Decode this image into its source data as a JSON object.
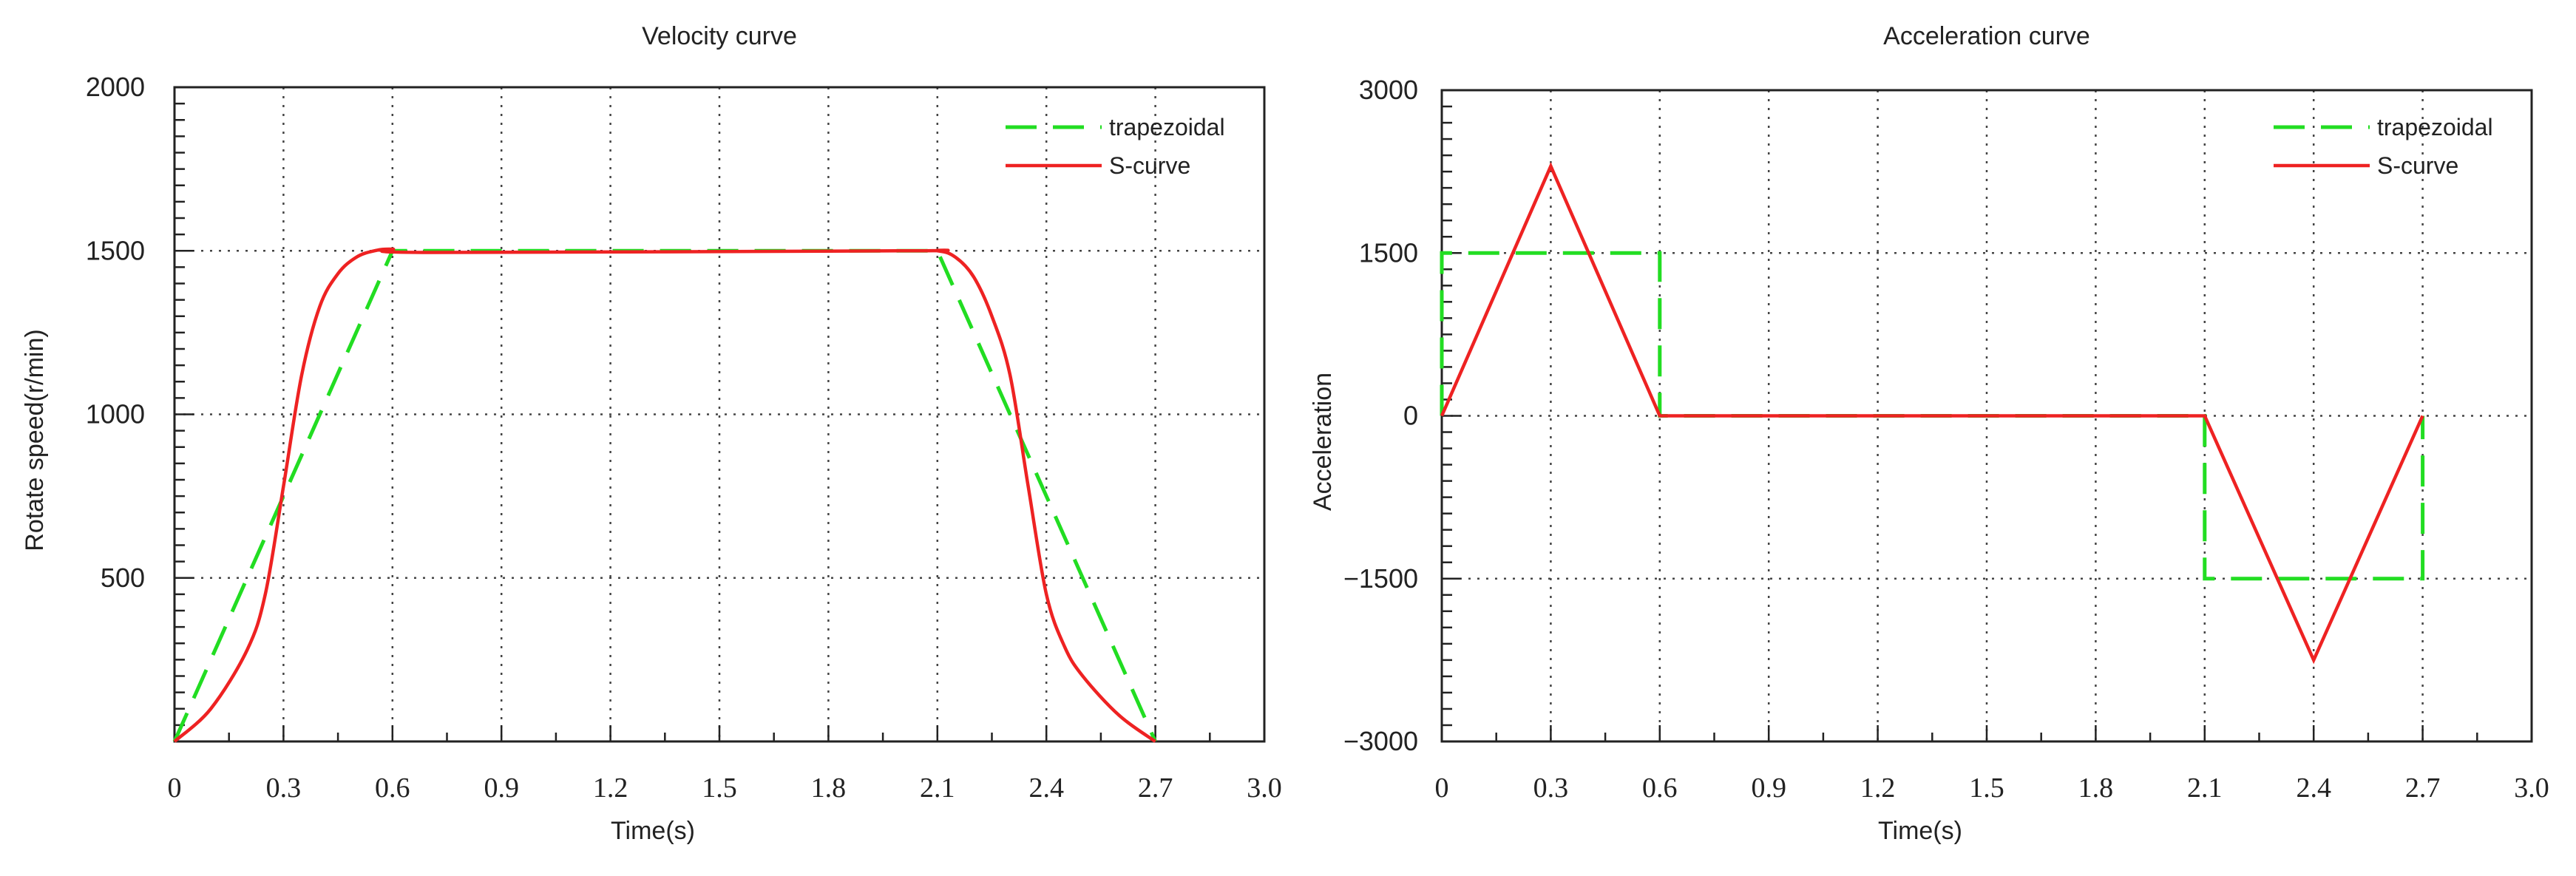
{
  "chart_data": [
    {
      "type": "line",
      "title": "Velocity curve",
      "xlabel": "Time(s)",
      "ylabel": "Rotate speed(r/min)",
      "xlim": [
        0,
        3.0
      ],
      "ylim": [
        0,
        2000
      ],
      "xticks": [
        "0",
        "0.3",
        "0.6",
        "0.9",
        "1.2",
        "1.5",
        "1.8",
        "2.1",
        "2.4",
        "2.7",
        "3.0"
      ],
      "xtick_values": [
        0,
        0.3,
        0.6,
        0.9,
        1.2,
        1.5,
        1.8,
        2.1,
        2.4,
        2.7,
        3.0
      ],
      "yticks": [
        "500",
        "1000",
        "1500",
        "2000"
      ],
      "ytick_values": [
        500,
        1000,
        1500,
        2000
      ],
      "grid": true,
      "legend_position": "top-right",
      "series": [
        {
          "name": "trapezoidal",
          "color": "#22dd22",
          "style": "dashed",
          "x": [
            0,
            0.6,
            2.1,
            2.7
          ],
          "y": [
            0,
            1500,
            1500,
            0
          ]
        },
        {
          "name": "S-curve",
          "color": "#ee2222",
          "style": "solid",
          "x": [
            0,
            0.1,
            0.2,
            0.25,
            0.3,
            0.35,
            0.4,
            0.45,
            0.5,
            0.55,
            0.6,
            0.7,
            2.0,
            2.1,
            2.15,
            2.2,
            2.25,
            2.3,
            2.35,
            2.4,
            2.45,
            2.5,
            2.6,
            2.7
          ],
          "y": [
            0,
            100,
            280,
            450,
            780,
            1120,
            1330,
            1430,
            1480,
            1500,
            1505,
            1495,
            1500,
            1500,
            1480,
            1420,
            1300,
            1120,
            780,
            450,
            290,
            200,
            80,
            0
          ]
        }
      ]
    },
    {
      "type": "line",
      "title": "Acceleration curve",
      "xlabel": "Time(s)",
      "ylabel": "Acceleration",
      "xlim": [
        0,
        3.0
      ],
      "ylim": [
        -3000,
        3000
      ],
      "xticks": [
        "0",
        "0.3",
        "0.6",
        "0.9",
        "1.2",
        "1.5",
        "1.8",
        "2.1",
        "2.4",
        "2.7",
        "3.0"
      ],
      "xtick_values": [
        0,
        0.3,
        0.6,
        0.9,
        1.2,
        1.5,
        1.8,
        2.1,
        2.4,
        2.7,
        3.0
      ],
      "yticks": [
        "−3000",
        "−1500",
        "0",
        "1500",
        "3000"
      ],
      "ytick_values": [
        -3000,
        -1500,
        0,
        1500,
        3000
      ],
      "grid": true,
      "legend_position": "top-right",
      "series": [
        {
          "name": "trapezoidal",
          "color": "#22dd22",
          "style": "dashed",
          "x": [
            0,
            0,
            0.6,
            0.6,
            2.1,
            2.1,
            2.7,
            2.7
          ],
          "y": [
            0,
            1500,
            1500,
            0,
            0,
            -1500,
            -1500,
            0
          ]
        },
        {
          "name": "S-curve",
          "color": "#ee2222",
          "style": "solid",
          "x": [
            0,
            0.3,
            0.6,
            2.1,
            2.4,
            2.7
          ],
          "y": [
            0,
            2300,
            0,
            0,
            -2250,
            0
          ]
        }
      ]
    }
  ]
}
